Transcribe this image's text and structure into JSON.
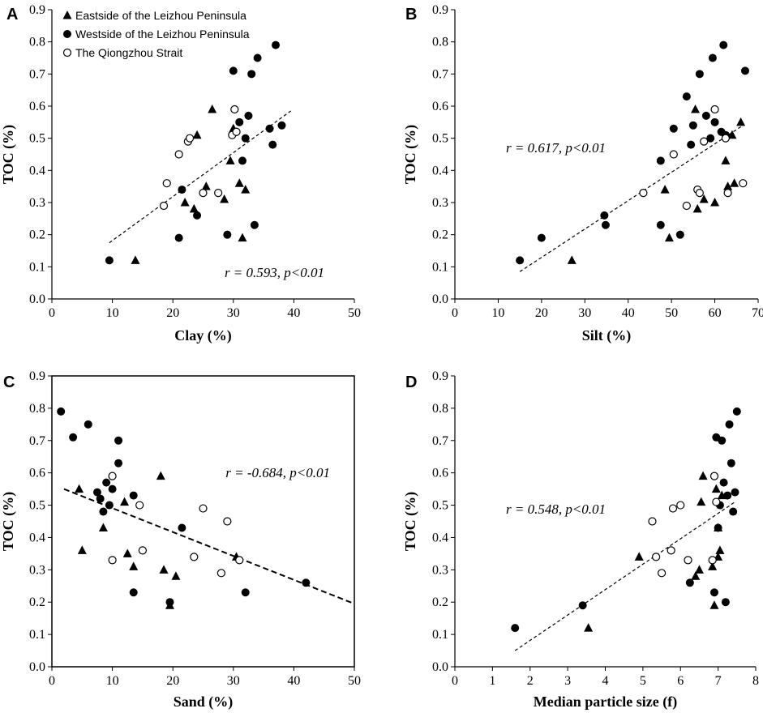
{
  "chart_data": [
    {
      "panel": "A",
      "type": "scatter",
      "xlabel": "Clay (%)",
      "ylabel": "TOC (%)",
      "xlim": [
        0,
        50
      ],
      "ylim": [
        0,
        0.9
      ],
      "xticks": [
        "0",
        "10",
        "20",
        "30",
        "40",
        "50"
      ],
      "yticks": [
        "0.0",
        "0.1",
        "0.2",
        "0.3",
        "0.4",
        "0.5",
        "0.6",
        "0.7",
        "0.8",
        "0.9"
      ],
      "annotation": "r = 0.593, p<0.01",
      "trend": {
        "x": [
          9.5,
          39.5
        ],
        "y": [
          0.175,
          0.585
        ]
      },
      "legend": [
        "Eastside of the Leizhou Peninsula",
        "Westside of the Leizhou Peninsula",
        "The Qiongzhou Strait"
      ],
      "series": [
        {
          "name": "Eastside of the Leizhou Peninsula",
          "marker": "triangle",
          "x": [
            13.8,
            22,
            23.5,
            24,
            25.5,
            26.5,
            28.5,
            29.5,
            30,
            31,
            31.5,
            32
          ],
          "y": [
            0.12,
            0.3,
            0.28,
            0.51,
            0.35,
            0.59,
            0.31,
            0.43,
            0.53,
            0.36,
            0.19,
            0.34
          ]
        },
        {
          "name": "Westside of the Leizhou Peninsula",
          "marker": "filled-circle",
          "x": [
            9.5,
            21,
            21.5,
            24,
            29,
            30,
            30.5,
            31,
            31.5,
            32,
            32.5,
            33,
            33.5,
            34,
            36,
            36.5,
            37,
            38
          ],
          "y": [
            0.12,
            0.19,
            0.34,
            0.26,
            0.2,
            0.71,
            0.52,
            0.55,
            0.43,
            0.5,
            0.57,
            0.7,
            0.23,
            0.75,
            0.53,
            0.48,
            0.79,
            0.54
          ]
        },
        {
          "name": "The Qiongzhou Strait",
          "marker": "open-circle",
          "x": [
            18.5,
            19,
            21,
            22.5,
            22.8,
            25,
            27.5,
            29.8,
            30.2,
            30.5
          ],
          "y": [
            0.29,
            0.36,
            0.45,
            0.49,
            0.5,
            0.33,
            0.33,
            0.51,
            0.59,
            0.52
          ]
        }
      ]
    },
    {
      "panel": "B",
      "type": "scatter",
      "xlabel": "Silt (%)",
      "ylabel": "TOC (%)",
      "xlim": [
        0,
        70
      ],
      "ylim": [
        0,
        0.9
      ],
      "xticks": [
        "0",
        "10",
        "20",
        "30",
        "40",
        "50",
        "60",
        "70"
      ],
      "yticks": [
        "0.0",
        "0.1",
        "0.2",
        "0.3",
        "0.4",
        "0.5",
        "0.6",
        "0.7",
        "0.8",
        "0.9"
      ],
      "annotation": "r = 0.617, p<0.01",
      "trend": {
        "x": [
          15,
          66.5
        ],
        "y": [
          0.085,
          0.54
        ]
      },
      "series": [
        {
          "name": "Eastside of the Leizhou Peninsula",
          "marker": "triangle",
          "x": [
            27,
            48.5,
            49.5,
            55.5,
            56,
            57.5,
            60,
            62.5,
            63,
            64,
            64.5,
            66
          ],
          "y": [
            0.12,
            0.34,
            0.19,
            0.59,
            0.28,
            0.31,
            0.3,
            0.43,
            0.35,
            0.51,
            0.36,
            0.55
          ]
        },
        {
          "name": "Westside of the Leizhou Peninsula",
          "marker": "filled-circle",
          "x": [
            15,
            20,
            34.5,
            34.8,
            47.5,
            47.5,
            50.5,
            52,
            53.5,
            54.5,
            55,
            56.5,
            58,
            59,
            59.5,
            60,
            61.5,
            62,
            62.5,
            67
          ],
          "y": [
            0.12,
            0.19,
            0.26,
            0.23,
            0.23,
            0.43,
            0.53,
            0.2,
            0.63,
            0.48,
            0.54,
            0.7,
            0.57,
            0.5,
            0.75,
            0.55,
            0.52,
            0.79,
            0.51,
            0.71
          ]
        },
        {
          "name": "The Qiongzhou Strait",
          "marker": "open-circle",
          "x": [
            43.5,
            50.5,
            53.5,
            56,
            56.5,
            57.5,
            60,
            62.5,
            63,
            66.5
          ],
          "y": [
            0.33,
            0.45,
            0.29,
            0.34,
            0.33,
            0.49,
            0.59,
            0.5,
            0.33,
            0.36
          ]
        }
      ]
    },
    {
      "panel": "C",
      "type": "scatter",
      "xlabel": "Sand (%)",
      "ylabel": "TOC (%)",
      "xlim": [
        0,
        50
      ],
      "ylim": [
        0,
        0.9
      ],
      "xticks": [
        "0",
        "10",
        "20",
        "30",
        "40",
        "50"
      ],
      "yticks": [
        "0.0",
        "0.1",
        "0.2",
        "0.3",
        "0.4",
        "0.5",
        "0.6",
        "0.7",
        "0.8",
        "0.9"
      ],
      "annotation": "r = -0.684, p<0.01",
      "trend": {
        "x": [
          2,
          50
        ],
        "y": [
          0.55,
          0.195
        ]
      },
      "series": [
        {
          "name": "Eastside of the Leizhou Peninsula",
          "marker": "triangle",
          "x": [
            4.5,
            5,
            8.5,
            12,
            12.5,
            13.5,
            18,
            18.5,
            19.5,
            20.5,
            30.5
          ],
          "y": [
            0.55,
            0.36,
            0.43,
            0.51,
            0.35,
            0.31,
            0.59,
            0.3,
            0.19,
            0.28,
            0.34
          ]
        },
        {
          "name": "Westside of the Leizhou Peninsula",
          "marker": "filled-circle",
          "x": [
            1.5,
            3.5,
            6,
            7.5,
            8,
            8.5,
            9,
            9.5,
            10,
            11,
            11,
            13.5,
            13.5,
            19.5,
            21.5,
            32,
            42
          ],
          "y": [
            0.79,
            0.71,
            0.75,
            0.54,
            0.52,
            0.48,
            0.57,
            0.5,
            0.55,
            0.7,
            0.63,
            0.53,
            0.23,
            0.2,
            0.43,
            0.23,
            0.26
          ]
        },
        {
          "name": "The Qiongzhou Strait",
          "marker": "open-circle",
          "x": [
            10,
            10,
            14.5,
            15,
            23.5,
            25,
            28,
            29,
            31
          ],
          "y": [
            0.59,
            0.33,
            0.5,
            0.36,
            0.34,
            0.49,
            0.29,
            0.45,
            0.33
          ]
        }
      ]
    },
    {
      "panel": "D",
      "type": "scatter",
      "xlabel": "Median particle size (f)",
      "ylabel": "TOC (%)",
      "xlim": [
        0,
        8
      ],
      "ylim": [
        0,
        0.9
      ],
      "xticks": [
        "0",
        "1",
        "2",
        "3",
        "4",
        "5",
        "6",
        "7",
        "8"
      ],
      "yticks": [
        "0.0",
        "0.1",
        "0.2",
        "0.3",
        "0.4",
        "0.5",
        "0.6",
        "0.7",
        "0.8",
        "0.9"
      ],
      "annotation": "r = 0.548, p<0.01",
      "trend": {
        "x": [
          1.6,
          7.45
        ],
        "y": [
          0.05,
          0.51
        ]
      },
      "series": [
        {
          "name": "Eastside of the Leizhou Peninsula",
          "marker": "triangle",
          "x": [
            3.55,
            4.9,
            6.4,
            6.5,
            6.55,
            6.6,
            6.85,
            6.9,
            6.95,
            7.0,
            7.0,
            7.05,
            7.1
          ],
          "y": [
            0.12,
            0.34,
            0.28,
            0.3,
            0.51,
            0.59,
            0.31,
            0.19,
            0.55,
            0.43,
            0.34,
            0.36,
            0.53
          ]
        },
        {
          "name": "Westside of the Leizhou Peninsula",
          "marker": "filled-circle",
          "x": [
            1.6,
            3.4,
            6.25,
            6.9,
            6.95,
            7.0,
            7.05,
            7.1,
            7.15,
            7.2,
            7.25,
            7.3,
            7.35,
            7.4,
            7.45,
            7.5
          ],
          "y": [
            0.12,
            0.19,
            0.26,
            0.23,
            0.71,
            0.43,
            0.5,
            0.7,
            0.57,
            0.2,
            0.53,
            0.75,
            0.63,
            0.48,
            0.54,
            0.79
          ]
        },
        {
          "name": "The Qiongzhou Strait",
          "marker": "open-circle",
          "x": [
            5.25,
            5.35,
            5.5,
            5.75,
            5.8,
            6.0,
            6.2,
            6.85,
            6.9,
            6.95
          ],
          "y": [
            0.45,
            0.34,
            0.29,
            0.36,
            0.49,
            0.5,
            0.33,
            0.33,
            0.59,
            0.51
          ]
        }
      ]
    }
  ]
}
